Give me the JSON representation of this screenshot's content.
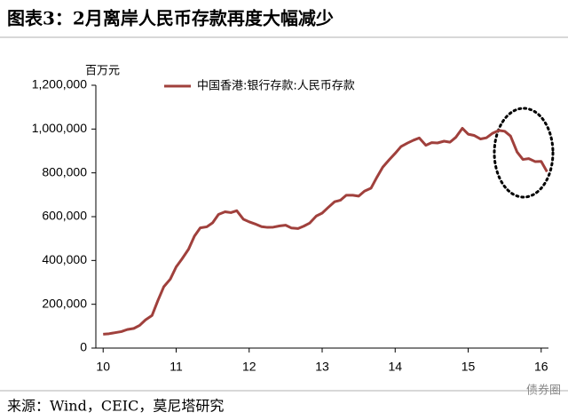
{
  "chart_data": {
    "type": "line",
    "title": "图表3：2月离岸人民币存款再度大幅减少",
    "y_axis_label": "百万元",
    "source": "来源：Wind，CEIC，莫尼塔研究",
    "watermark": "债券圈",
    "x": [
      10,
      10.08,
      10.17,
      10.25,
      10.33,
      10.42,
      10.5,
      10.58,
      10.67,
      10.75,
      10.83,
      10.92,
      11,
      11.08,
      11.17,
      11.25,
      11.33,
      11.42,
      11.5,
      11.58,
      11.67,
      11.75,
      11.83,
      11.92,
      12,
      12.08,
      12.17,
      12.25,
      12.33,
      12.42,
      12.5,
      12.58,
      12.67,
      12.75,
      12.83,
      12.92,
      13,
      13.08,
      13.17,
      13.25,
      13.33,
      13.42,
      13.5,
      13.58,
      13.67,
      13.75,
      13.83,
      13.92,
      14,
      14.08,
      14.17,
      14.25,
      14.33,
      14.42,
      14.5,
      14.58,
      14.67,
      14.75,
      14.83,
      14.92,
      15,
      15.08,
      15.17,
      15.25,
      15.33,
      15.42,
      15.5,
      15.58,
      15.67,
      15.75,
      15.83,
      15.92,
      16,
      16.08
    ],
    "series": [
      {
        "name": "中国香港:银行存款:人民币存款",
        "color": "#a0403c",
        "values": [
          63500,
          65600,
          70700,
          75300,
          84700,
          89700,
          103700,
          128700,
          149200,
          217100,
          279600,
          314900,
          370600,
          407000,
          451500,
          510800,
          548900,
          553600,
          572200,
          610300,
          622200,
          618500,
          627300,
          588500,
          576400,
          566900,
          554300,
          551100,
          552100,
          558000,
          561000,
          548100,
          545700,
          556900,
          571000,
          603000,
          616200,
          641200,
          668100,
          675100,
          698000,
          697900,
          693700,
          716600,
          730400,
          780000,
          826000,
          860500,
          889000,
          920000,
          936300,
          948900,
          959400,
          925900,
          937800,
          936500,
          944600,
          940000,
          962000,
          1003600,
          976600,
          971000,
          954600,
          960000,
          980000,
          993900,
          990000,
          968100,
          895000,
          861300,
          864900,
          851100,
          852400,
          805400
        ]
      }
    ],
    "xlim": [
      9.9,
      16.1
    ],
    "xticks": [
      10,
      11,
      12,
      13,
      14,
      15,
      16
    ],
    "ylim": [
      0,
      1200000
    ],
    "yticks": [
      0,
      {
        "value": 200000,
        "label": "200,000"
      },
      {
        "value": 400000,
        "label": "400,000"
      },
      {
        "value": 600000,
        "label": "600,000"
      },
      {
        "value": 800000,
        "label": "800,000"
      },
      {
        "value": 1000000,
        "label": "1,000,000"
      },
      {
        "value": 1200000,
        "label": "1,200,000"
      }
    ],
    "grid": false,
    "legend": "top"
  }
}
